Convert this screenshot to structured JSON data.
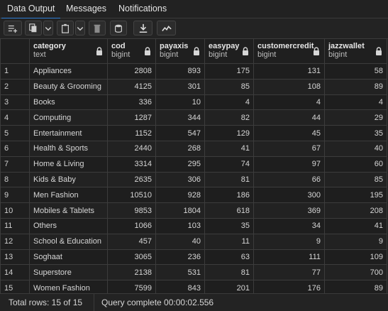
{
  "tabs": [
    {
      "label": "Data Output"
    },
    {
      "label": "Messages"
    },
    {
      "label": "Notifications"
    }
  ],
  "columns": [
    {
      "name": "",
      "type": ""
    },
    {
      "name": "category",
      "type": "text"
    },
    {
      "name": "cod",
      "type": "bigint"
    },
    {
      "name": "payaxis",
      "type": "bigint"
    },
    {
      "name": "easypay",
      "type": "bigint"
    },
    {
      "name": "customercredit",
      "type": "bigint"
    },
    {
      "name": "jazzwallet",
      "type": "bigint"
    }
  ],
  "rows": [
    [
      "1",
      "Appliances",
      "2808",
      "893",
      "175",
      "131",
      "58"
    ],
    [
      "2",
      "Beauty & Grooming",
      "4125",
      "301",
      "85",
      "108",
      "89"
    ],
    [
      "3",
      "Books",
      "336",
      "10",
      "4",
      "4",
      "4"
    ],
    [
      "4",
      "Computing",
      "1287",
      "344",
      "82",
      "44",
      "29"
    ],
    [
      "5",
      "Entertainment",
      "1152",
      "547",
      "129",
      "45",
      "35"
    ],
    [
      "6",
      "Health & Sports",
      "2440",
      "268",
      "41",
      "67",
      "40"
    ],
    [
      "7",
      "Home & Living",
      "3314",
      "295",
      "74",
      "97",
      "60"
    ],
    [
      "8",
      "Kids & Baby",
      "2635",
      "306",
      "81",
      "66",
      "85"
    ],
    [
      "9",
      "Men Fashion",
      "10510",
      "928",
      "186",
      "300",
      "195"
    ],
    [
      "10",
      "Mobiles & Tablets",
      "9853",
      "1804",
      "618",
      "369",
      "208"
    ],
    [
      "11",
      "Others",
      "1066",
      "103",
      "35",
      "34",
      "41"
    ],
    [
      "12",
      "School & Education",
      "457",
      "40",
      "11",
      "9",
      "9"
    ],
    [
      "13",
      "Soghaat",
      "3065",
      "236",
      "63",
      "111",
      "109"
    ],
    [
      "14",
      "Superstore",
      "2138",
      "531",
      "81",
      "77",
      "700"
    ],
    [
      "15",
      "Women Fashion",
      "7599",
      "843",
      "201",
      "176",
      "89"
    ]
  ],
  "status": {
    "total_rows": "Total rows: 15 of 15",
    "query": "Query complete 00:00:02.556"
  },
  "colors": {
    "accent": "#2f7fd6",
    "background": "#1e1e1e"
  }
}
